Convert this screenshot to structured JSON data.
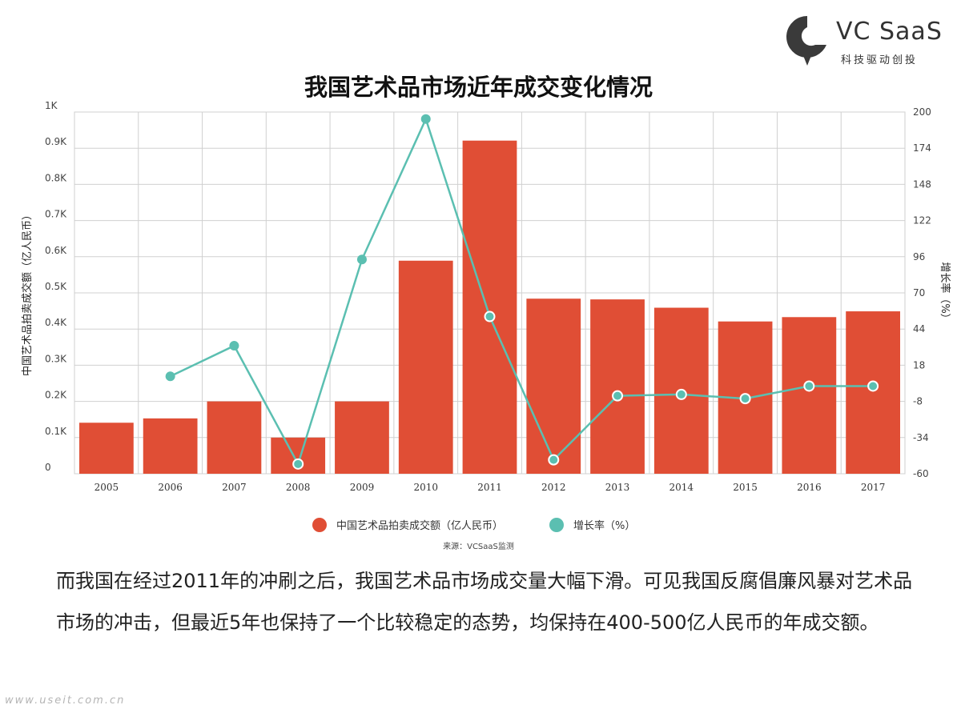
{
  "brand": {
    "name": "VC SaaS",
    "tagline": "科技驱动创投",
    "color": "#3a3a3a"
  },
  "title": "我国艺术品市场近年成交变化情况",
  "chart_data": {
    "type": "bar",
    "title": "我国艺术品市场近年成交变化情况",
    "categories": [
      "2005",
      "2006",
      "2007",
      "2008",
      "2009",
      "2010",
      "2011",
      "2012",
      "2013",
      "2014",
      "2015",
      "2016",
      "2017"
    ],
    "series": [
      {
        "name": "中国艺术品拍卖成交额（亿人民币）",
        "type": "bar",
        "axis": "left",
        "color": "#e04e35",
        "values": [
          141,
          153,
          200,
          100,
          200,
          589,
          921,
          484,
          482,
          459,
          421,
          433,
          449
        ]
      },
      {
        "name": "增长率（%）",
        "type": "line",
        "axis": "right",
        "color": "#5bbfb1",
        "values": [
          null,
          10,
          32,
          -53,
          94,
          195,
          53,
          -50,
          -4,
          -3,
          -6,
          3,
          3
        ]
      }
    ],
    "ylabel": "中国艺术品拍卖成交额（亿人民币）",
    "y2label": "增长率（%）",
    "ylim": [
      0,
      1000
    ],
    "y2lim": [
      -60,
      200
    ],
    "yticks": [
      "0",
      "0.1K",
      "0.2K",
      "0.3K",
      "0.4K",
      "0.5K",
      "0.6K",
      "0.7K",
      "0.8K",
      "0.9K",
      "1K"
    ],
    "y2ticks": [
      "-60",
      "-34",
      "-8",
      "18",
      "44",
      "70",
      "96",
      "122",
      "148",
      "174",
      "200"
    ],
    "grid": true,
    "legend": "bottom-center"
  },
  "source": "来源：VCSaaS监测",
  "paragraph": "而我国在经过2011年的冲刷之后，我国艺术品市场成交量大幅下滑。可见我国反腐倡廉风暴对艺术品市场的冲击，但最近5年也保持了一个比较稳定的态势，均保持在400-500亿人民币的年成交额。",
  "watermark": "www.useit.com.cn"
}
